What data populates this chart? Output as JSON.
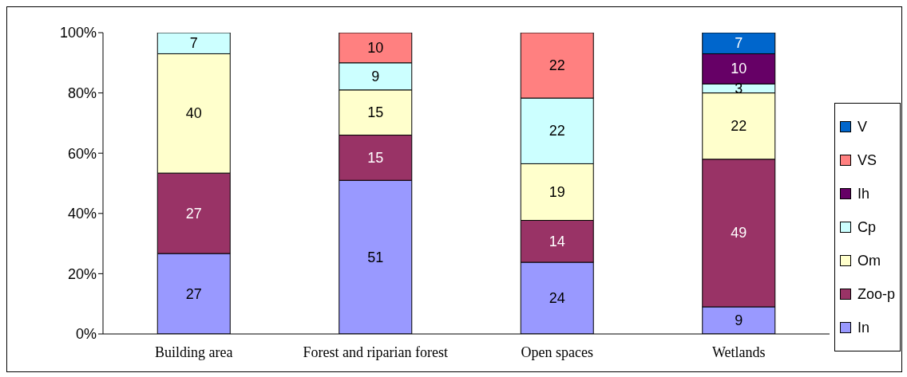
{
  "chart_data": {
    "type": "bar",
    "stacked": true,
    "categories": [
      "Building area",
      "Forest and riparian forest",
      "Open spaces",
      "Wetlands"
    ],
    "series": [
      {
        "name": "In",
        "color": "#9999ff",
        "values": [
          26.7,
          51,
          23.8,
          9
        ],
        "value_labels": [
          "27",
          "51",
          "24",
          "9"
        ]
      },
      {
        "name": "Zoo-p",
        "color": "#993366",
        "values": [
          26.7,
          15,
          13.9,
          49
        ],
        "value_labels": [
          "27",
          "15",
          "14",
          "49"
        ]
      },
      {
        "name": "Om",
        "color": "#ffffcc",
        "values": [
          39.6,
          15,
          18.8,
          22
        ],
        "value_labels": [
          "40",
          "15",
          "19",
          "22"
        ]
      },
      {
        "name": "Cp",
        "color": "#ccffff",
        "values": [
          7,
          9,
          21.8,
          3
        ],
        "value_labels": [
          "7",
          "9",
          "22",
          "3"
        ]
      },
      {
        "name": "Ih",
        "color": "#660066",
        "values": [
          null,
          null,
          null,
          10
        ],
        "value_labels": [
          null,
          null,
          null,
          "10"
        ]
      },
      {
        "name": "VS",
        "color": "#ff8080",
        "values": [
          null,
          10,
          21.7,
          null
        ],
        "value_labels": [
          null,
          "10",
          "22",
          null
        ]
      },
      {
        "name": "V",
        "color": "#0066cc",
        "values": [
          null,
          null,
          null,
          7
        ],
        "value_labels": [
          null,
          null,
          null,
          "7"
        ]
      }
    ],
    "ylim": [
      0,
      100
    ],
    "yticks": [
      {
        "value": 0,
        "label": "0%"
      },
      {
        "value": 20,
        "label": "20%"
      },
      {
        "value": 40,
        "label": "40%"
      },
      {
        "value": 60,
        "label": "60%"
      },
      {
        "value": 80,
        "label": "80%"
      },
      {
        "value": 100,
        "label": "100%"
      }
    ],
    "grid": false,
    "legend": "right"
  }
}
